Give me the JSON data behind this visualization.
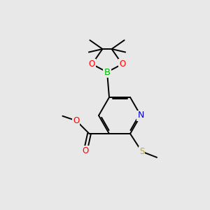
{
  "bg_color": "#e8e8e8",
  "bond_color": "#000000",
  "atom_colors": {
    "O": "#ff0000",
    "N": "#0000cc",
    "B": "#00bb00",
    "S": "#ccaa00",
    "C": "#000000"
  },
  "line_width": 1.4,
  "figsize": [
    3.0,
    3.0
  ],
  "dpi": 100
}
